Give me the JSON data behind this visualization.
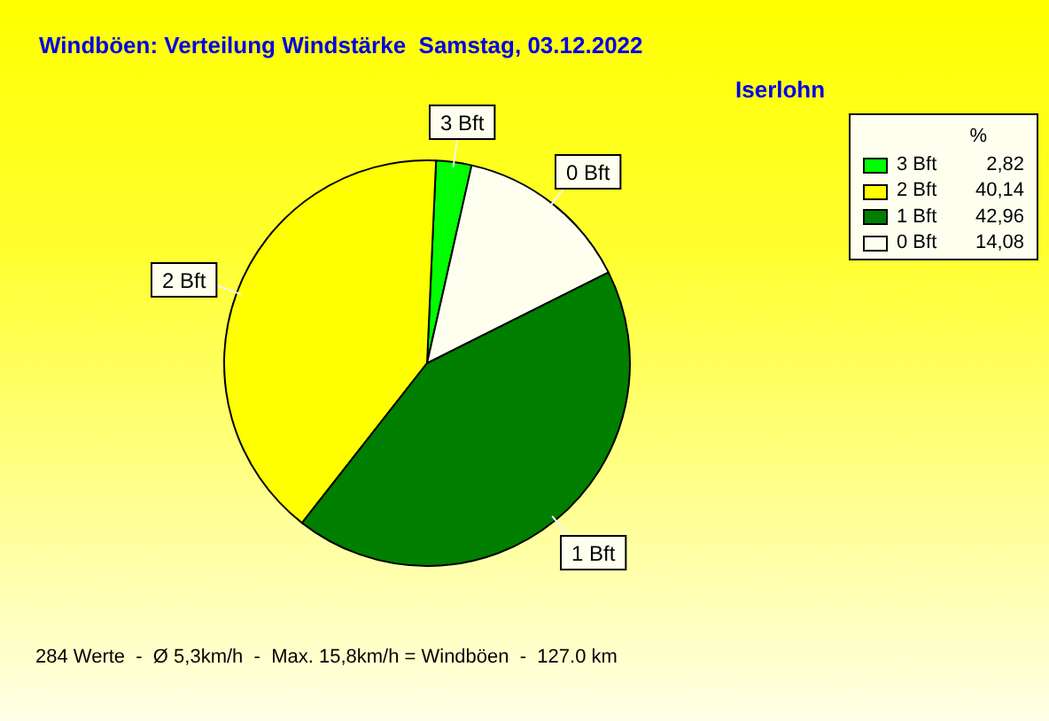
{
  "chart_data": {
    "type": "pie",
    "title": "Windböen: Verteilung Windstärke  Samstag, 03.12.2022",
    "subtitle": "Iserlohn",
    "categories": [
      "3 Bft",
      "2 Bft",
      "1 Bft",
      "0 Bft"
    ],
    "values": [
      2.82,
      40.14,
      42.96,
      14.08
    ],
    "colors": [
      "#00ff00",
      "#ffff00",
      "#007f00",
      "#fffff0"
    ],
    "value_labels": [
      "2,82",
      "40,14",
      "42,96",
      "14,08"
    ],
    "legend": "top right",
    "legend_title": "%",
    "annotations": [
      "284 Werte  -  Ø 5,3km/h  -  Max. 15,8km/h = Windböen  -  127.0 km"
    ]
  }
}
